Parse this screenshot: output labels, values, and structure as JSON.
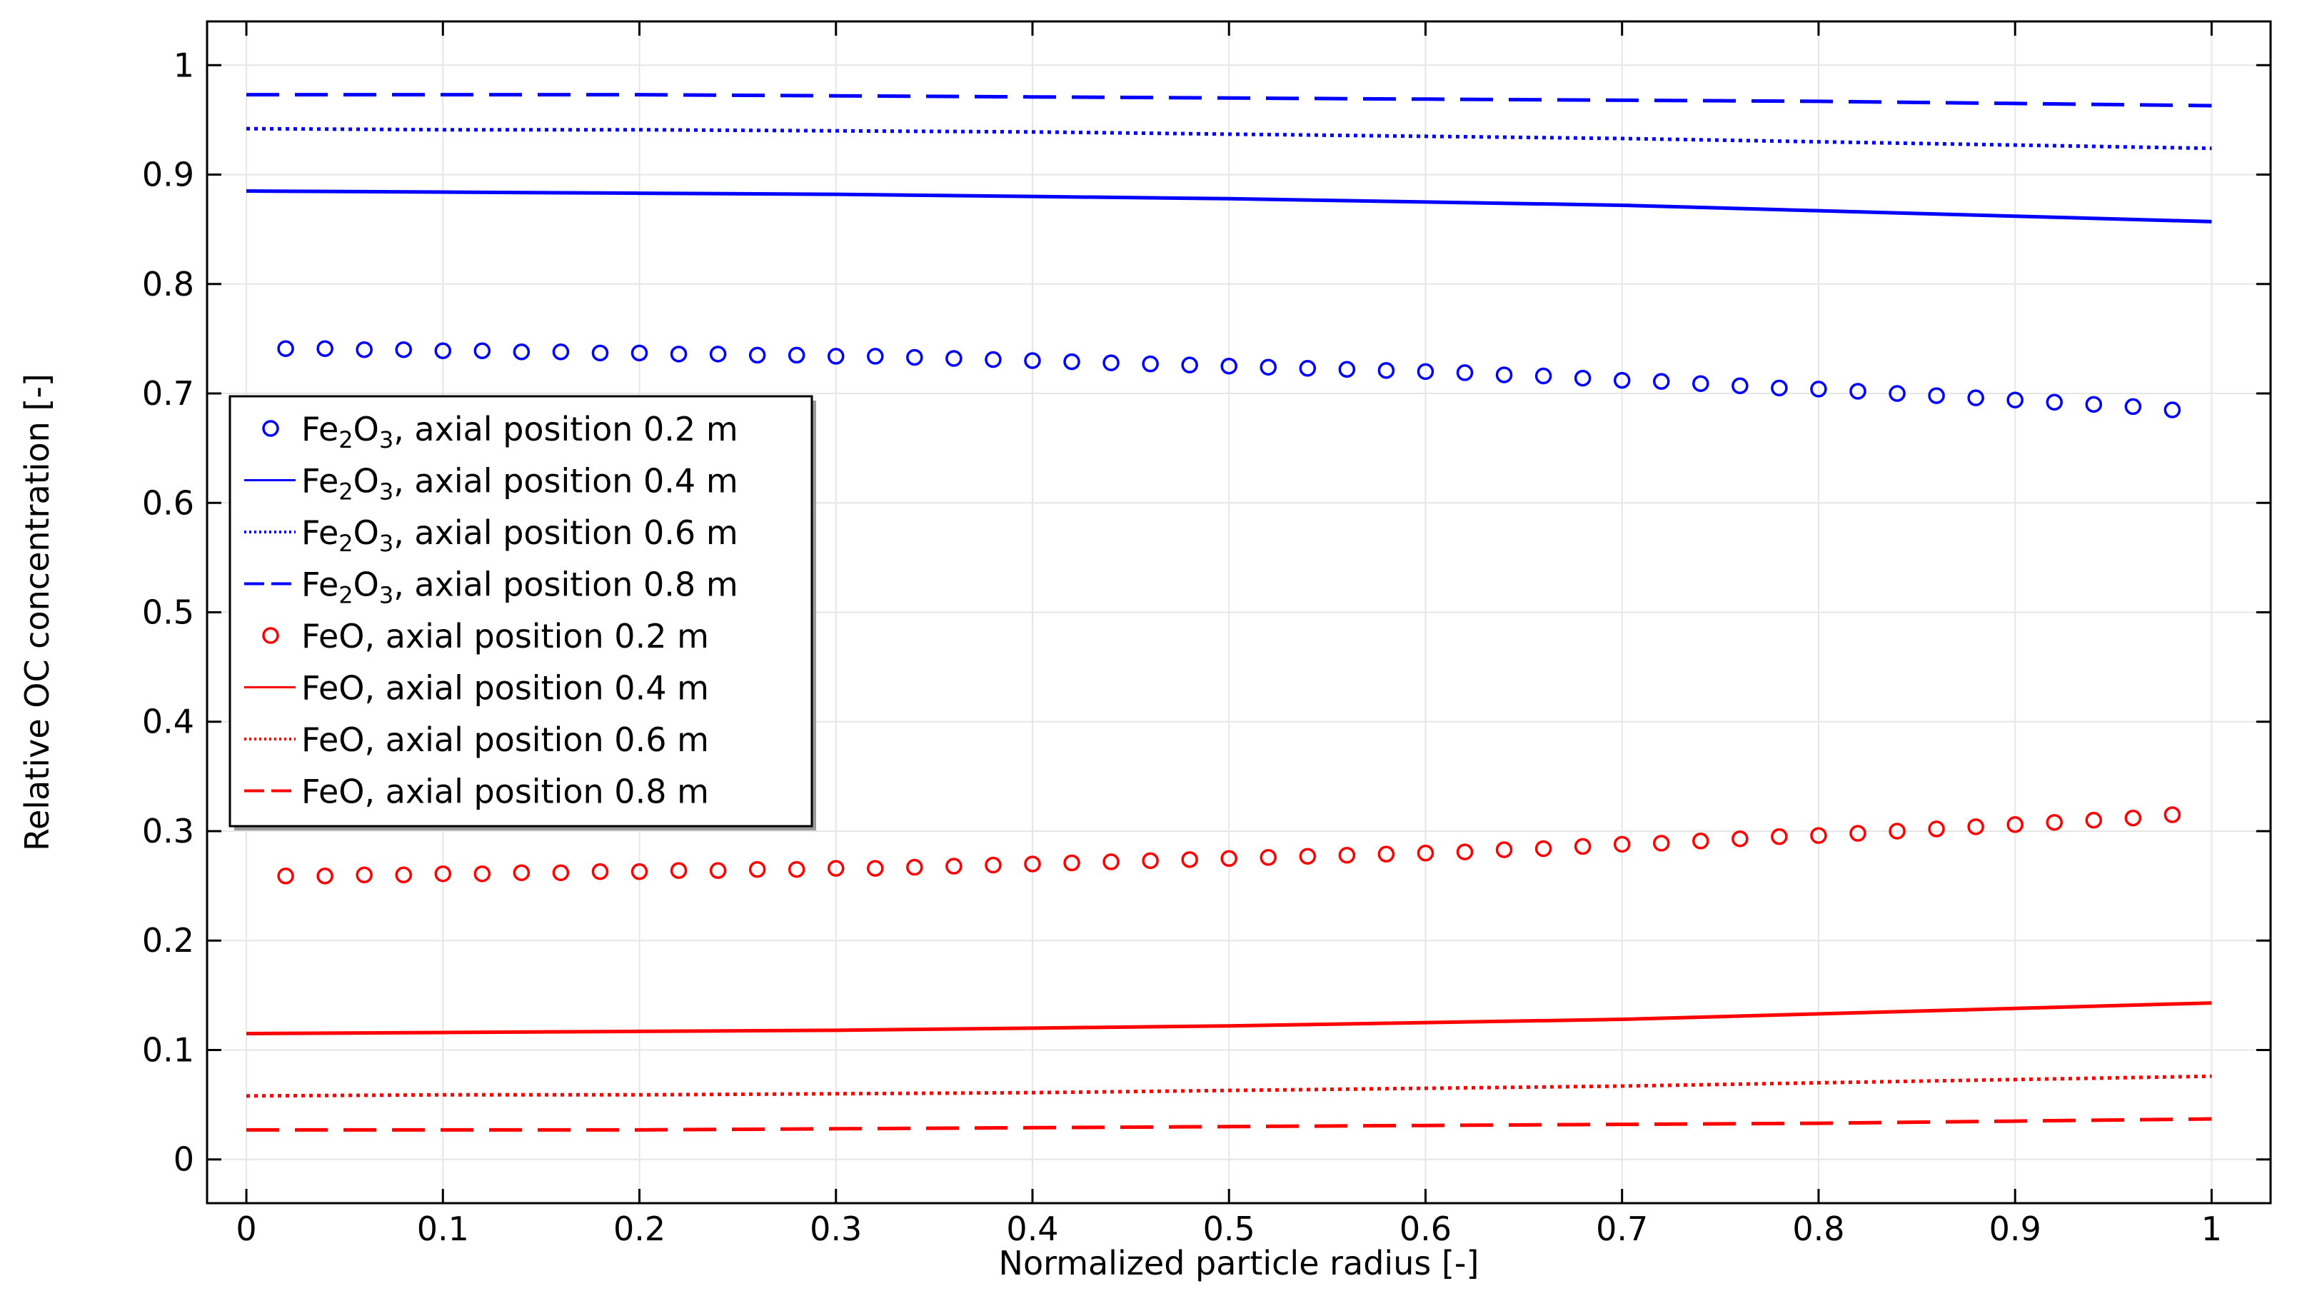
{
  "chart_data": {
    "type": "line",
    "title": "",
    "xlabel": "Normalized particle radius [-]",
    "ylabel": "Relative OC concentration [-]",
    "xlim": [
      -0.02,
      1.03
    ],
    "ylim": [
      -0.04,
      1.04
    ],
    "grid": true,
    "legend_position": "center-left",
    "x_ticks": [
      0,
      0.1,
      0.2,
      0.3,
      0.4,
      0.5,
      0.6,
      0.7,
      0.8,
      0.9,
      1
    ],
    "x_tick_labels": [
      "0",
      "0.1",
      "0.2",
      "0.3",
      "0.4",
      "0.5",
      "0.6",
      "0.7",
      "0.8",
      "0.9",
      "1"
    ],
    "y_ticks": [
      0,
      0.1,
      0.2,
      0.3,
      0.4,
      0.5,
      0.6,
      0.7,
      0.8,
      0.9,
      1
    ],
    "y_tick_labels": [
      "0",
      "0.1",
      "0.2",
      "0.3",
      "0.4",
      "0.5",
      "0.6",
      "0.7",
      "0.8",
      "0.9",
      "1"
    ],
    "colors": {
      "fe2o3": "#0000ff",
      "feo": "#ff0000"
    },
    "series": [
      {
        "name": "Fe2O3, axial position 0.2 m",
        "legend_main": "Fe",
        "legend_sub1": "2",
        "legend_mid": "O",
        "legend_sub2": "3",
        "legend_rest": ", axial position 0.2 m",
        "color_key": "fe2o3",
        "style": "circles",
        "x": [
          0.02,
          0.04,
          0.06,
          0.08,
          0.1,
          0.12,
          0.14,
          0.16,
          0.18,
          0.2,
          0.22,
          0.24,
          0.26,
          0.28,
          0.3,
          0.32,
          0.34,
          0.36,
          0.38,
          0.4,
          0.42,
          0.44,
          0.46,
          0.48,
          0.5,
          0.52,
          0.54,
          0.56,
          0.58,
          0.6,
          0.62,
          0.64,
          0.66,
          0.68,
          0.7,
          0.72,
          0.74,
          0.76,
          0.78,
          0.8,
          0.82,
          0.84,
          0.86,
          0.88,
          0.9,
          0.92,
          0.94,
          0.96,
          0.98
        ],
        "y": [
          0.741,
          0.741,
          0.74,
          0.74,
          0.739,
          0.739,
          0.738,
          0.738,
          0.737,
          0.737,
          0.736,
          0.736,
          0.735,
          0.735,
          0.734,
          0.734,
          0.733,
          0.732,
          0.731,
          0.73,
          0.729,
          0.728,
          0.727,
          0.726,
          0.725,
          0.724,
          0.723,
          0.722,
          0.721,
          0.72,
          0.719,
          0.717,
          0.716,
          0.714,
          0.712,
          0.711,
          0.709,
          0.707,
          0.705,
          0.704,
          0.702,
          0.7,
          0.698,
          0.696,
          0.694,
          0.692,
          0.69,
          0.688,
          0.685
        ]
      },
      {
        "name": "Fe2O3, axial position 0.4 m",
        "legend_main": "Fe",
        "legend_sub1": "2",
        "legend_mid": "O",
        "legend_sub2": "3",
        "legend_rest": ", axial position 0.4 m",
        "color_key": "fe2o3",
        "style": "solid",
        "x": [
          0,
          0.1,
          0.2,
          0.3,
          0.4,
          0.5,
          0.6,
          0.7,
          0.8,
          0.9,
          1
        ],
        "y": [
          0.885,
          0.884,
          0.883,
          0.882,
          0.88,
          0.878,
          0.875,
          0.872,
          0.867,
          0.862,
          0.857
        ]
      },
      {
        "name": "Fe2O3, axial position 0.6 m",
        "legend_main": "Fe",
        "legend_sub1": "2",
        "legend_mid": "O",
        "legend_sub2": "3",
        "legend_rest": ", axial position 0.6 m",
        "color_key": "fe2o3",
        "style": "dotted",
        "x": [
          0,
          0.1,
          0.2,
          0.3,
          0.4,
          0.5,
          0.6,
          0.7,
          0.8,
          0.9,
          1
        ],
        "y": [
          0.942,
          0.941,
          0.941,
          0.94,
          0.939,
          0.937,
          0.935,
          0.933,
          0.93,
          0.927,
          0.924
        ]
      },
      {
        "name": "Fe2O3, axial position 0.8 m",
        "legend_main": "Fe",
        "legend_sub1": "2",
        "legend_mid": "O",
        "legend_sub2": "3",
        "legend_rest": ", axial position 0.8 m",
        "color_key": "fe2o3",
        "style": "dashed",
        "x": [
          0,
          0.1,
          0.2,
          0.3,
          0.4,
          0.5,
          0.6,
          0.7,
          0.8,
          0.9,
          1
        ],
        "y": [
          0.973,
          0.973,
          0.973,
          0.972,
          0.971,
          0.97,
          0.969,
          0.968,
          0.967,
          0.965,
          0.963
        ]
      },
      {
        "name": "FeO, axial position 0.2 m",
        "legend_main": "FeO",
        "legend_sub1": "",
        "legend_mid": "",
        "legend_sub2": "",
        "legend_rest": ", axial position 0.2 m",
        "color_key": "feo",
        "style": "circles",
        "x": [
          0.02,
          0.04,
          0.06,
          0.08,
          0.1,
          0.12,
          0.14,
          0.16,
          0.18,
          0.2,
          0.22,
          0.24,
          0.26,
          0.28,
          0.3,
          0.32,
          0.34,
          0.36,
          0.38,
          0.4,
          0.42,
          0.44,
          0.46,
          0.48,
          0.5,
          0.52,
          0.54,
          0.56,
          0.58,
          0.6,
          0.62,
          0.64,
          0.66,
          0.68,
          0.7,
          0.72,
          0.74,
          0.76,
          0.78,
          0.8,
          0.82,
          0.84,
          0.86,
          0.88,
          0.9,
          0.92,
          0.94,
          0.96,
          0.98
        ],
        "y": [
          0.259,
          0.259,
          0.26,
          0.26,
          0.261,
          0.261,
          0.262,
          0.262,
          0.263,
          0.263,
          0.264,
          0.264,
          0.265,
          0.265,
          0.266,
          0.266,
          0.267,
          0.268,
          0.269,
          0.27,
          0.271,
          0.272,
          0.273,
          0.274,
          0.275,
          0.276,
          0.277,
          0.278,
          0.279,
          0.28,
          0.281,
          0.283,
          0.284,
          0.286,
          0.288,
          0.289,
          0.291,
          0.293,
          0.295,
          0.296,
          0.298,
          0.3,
          0.302,
          0.304,
          0.306,
          0.308,
          0.31,
          0.312,
          0.315
        ]
      },
      {
        "name": "FeO, axial position 0.4 m",
        "legend_main": "FeO",
        "legend_sub1": "",
        "legend_mid": "",
        "legend_sub2": "",
        "legend_rest": ", axial position 0.4 m",
        "color_key": "feo",
        "style": "solid",
        "x": [
          0,
          0.1,
          0.2,
          0.3,
          0.4,
          0.5,
          0.6,
          0.7,
          0.8,
          0.9,
          1
        ],
        "y": [
          0.115,
          0.116,
          0.117,
          0.118,
          0.12,
          0.122,
          0.125,
          0.128,
          0.133,
          0.138,
          0.143
        ]
      },
      {
        "name": "FeO, axial position 0.6 m",
        "legend_main": "FeO",
        "legend_sub1": "",
        "legend_mid": "",
        "legend_sub2": "",
        "legend_rest": ", axial position 0.6 m",
        "color_key": "feo",
        "style": "dotted",
        "x": [
          0,
          0.1,
          0.2,
          0.3,
          0.4,
          0.5,
          0.6,
          0.7,
          0.8,
          0.9,
          1
        ],
        "y": [
          0.058,
          0.059,
          0.059,
          0.06,
          0.061,
          0.063,
          0.065,
          0.067,
          0.07,
          0.073,
          0.076
        ]
      },
      {
        "name": "FeO, axial position 0.8 m",
        "legend_main": "FeO",
        "legend_sub1": "",
        "legend_mid": "",
        "legend_sub2": "",
        "legend_rest": ", axial position 0.8 m",
        "color_key": "feo",
        "style": "dashed",
        "x": [
          0,
          0.1,
          0.2,
          0.3,
          0.4,
          0.5,
          0.6,
          0.7,
          0.8,
          0.9,
          1
        ],
        "y": [
          0.027,
          0.027,
          0.027,
          0.028,
          0.029,
          0.03,
          0.031,
          0.032,
          0.033,
          0.035,
          0.037
        ]
      }
    ]
  }
}
